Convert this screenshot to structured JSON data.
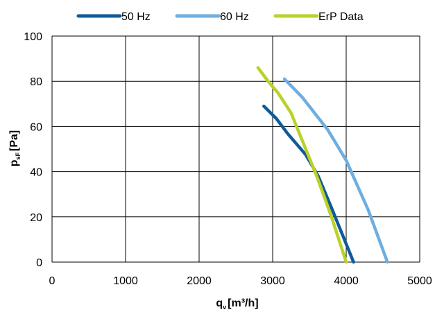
{
  "chart_data": {
    "type": "line",
    "title": "",
    "xlabel": {
      "main": "q",
      "sub": "v",
      "unit": "[m³/h]"
    },
    "ylabel": {
      "main": "p",
      "sub": "sF",
      "unit": "[Pa]"
    },
    "xlim": [
      0,
      5000
    ],
    "ylim": [
      0,
      100
    ],
    "xticks": [
      0,
      1000,
      2000,
      3000,
      4000,
      5000
    ],
    "yticks": [
      0,
      20,
      40,
      60,
      80,
      100
    ],
    "grid": true,
    "legend_position": "top",
    "series": [
      {
        "name": "50 Hz",
        "color": "#0f5a99",
        "points": [
          [
            2880,
            69
          ],
          [
            3050,
            63.5
          ],
          [
            3200,
            57
          ],
          [
            3450,
            47.5
          ],
          [
            3620,
            38
          ],
          [
            3800,
            24
          ],
          [
            3900,
            16
          ],
          [
            4100,
            0
          ]
        ]
      },
      {
        "name": "60 Hz",
        "color": "#6eaee0",
        "points": [
          [
            3160,
            81
          ],
          [
            3400,
            73
          ],
          [
            3750,
            58.5
          ],
          [
            4000,
            45
          ],
          [
            4300,
            23
          ],
          [
            4560,
            0
          ]
        ]
      },
      {
        "name": "ErP Data",
        "color": "#bbd12b",
        "points": [
          [
            2800,
            86
          ],
          [
            2950,
            79.5
          ],
          [
            3070,
            75
          ],
          [
            3250,
            66
          ],
          [
            3400,
            54
          ],
          [
            3600,
            38
          ],
          [
            3800,
            20
          ],
          [
            4000,
            0
          ]
        ]
      }
    ]
  }
}
